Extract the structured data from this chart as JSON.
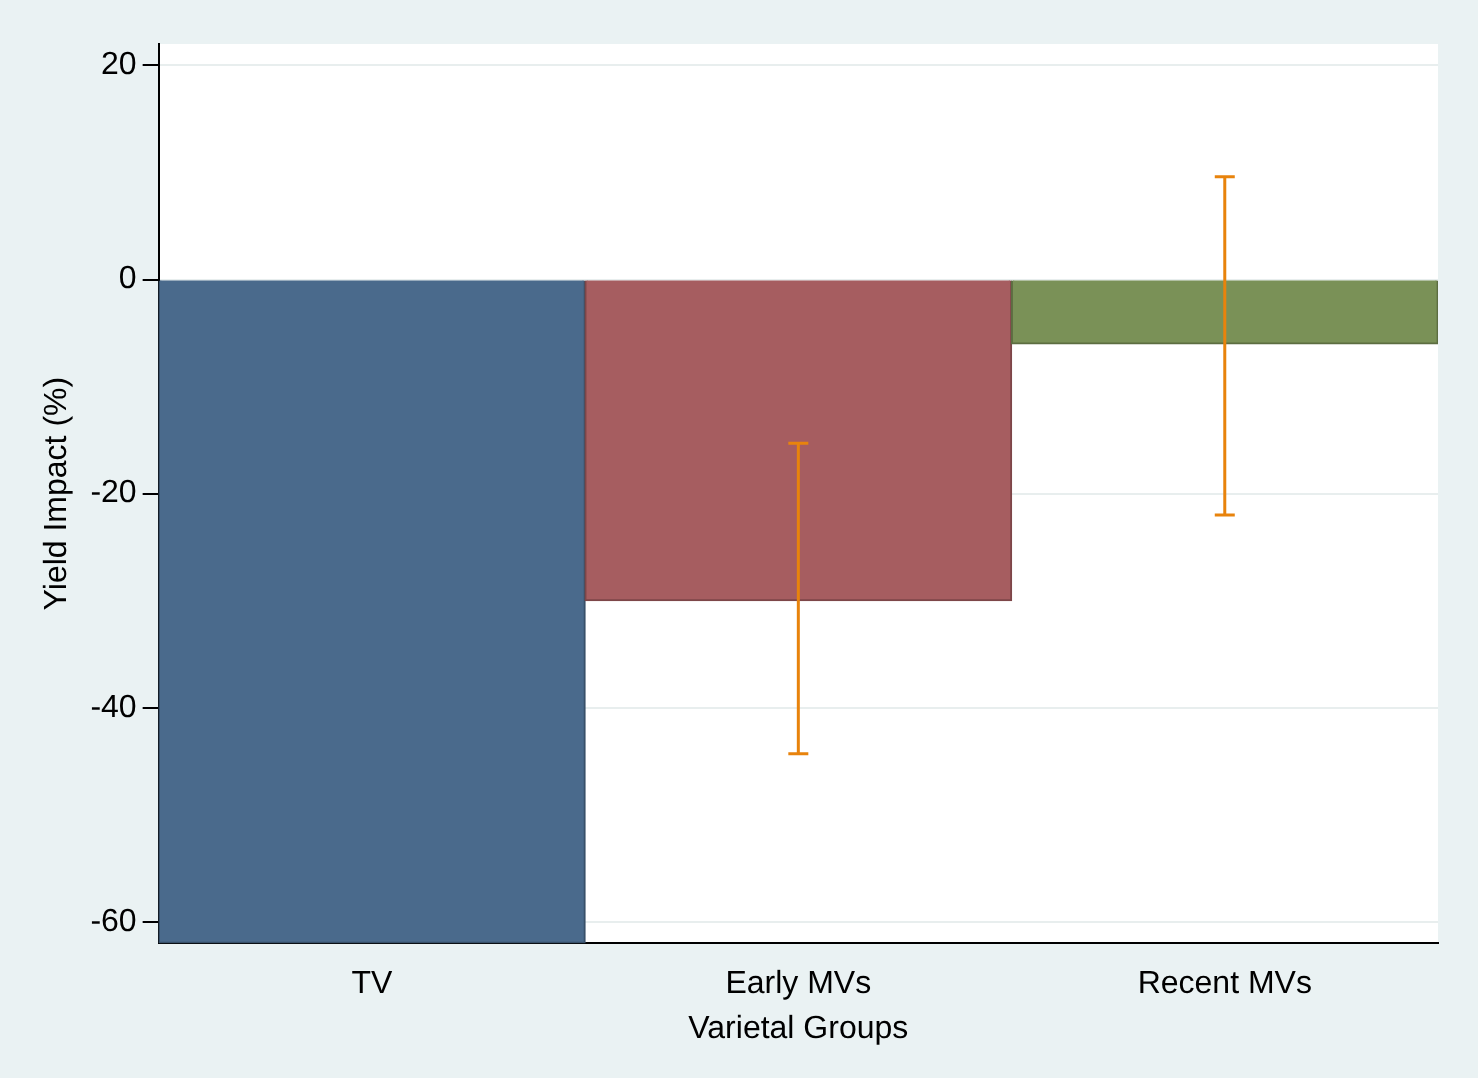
{
  "chart_data": {
    "type": "bar",
    "xlabel": "Varietal Groups",
    "ylabel": "Yield Impact (%)",
    "categories": [
      "TV",
      "Early MVs",
      "Recent MVs"
    ],
    "values": [
      -62,
      -30,
      -6
    ],
    "colors": [
      "#4a6a8c",
      "#a65d60",
      "#7a9157"
    ],
    "errors": [
      null,
      [
        -44.3,
        -15.3
      ],
      [
        -22,
        9.6
      ]
    ],
    "ylim": [
      -62,
      22
    ],
    "yticks": [
      -60,
      -40,
      -20,
      0,
      20
    ],
    "grid": "y",
    "legend": false
  }
}
